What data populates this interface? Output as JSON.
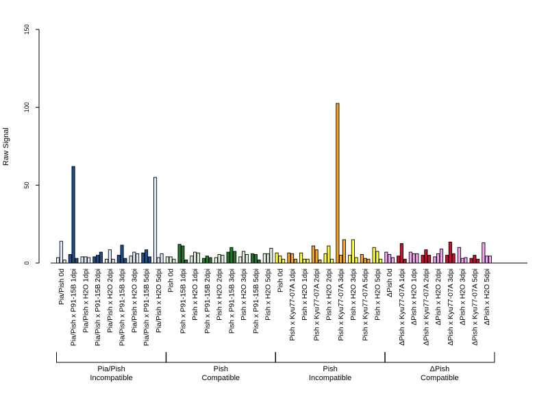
{
  "chart_data": {
    "type": "bar",
    "ylabel": "Raw Signal",
    "xlabel": "",
    "title": "",
    "ylim": [
      0,
      150
    ],
    "yticks": [
      "0",
      "50",
      "100",
      "150"
    ],
    "categories": [
      "Pia/Pish 0d",
      "Pia/Pish x P91-15B 1dpi",
      "Pia/Pish x H2O 1dpi",
      "Pia/Pish x P91-15B 2dpi",
      "Pia/Pish x H2O 2dpi",
      "Pia/Pish x P91-15B 3dpi",
      "Pia/Pish x H2O 3dpi",
      "Pia/Pish x P91-15B 5dpi",
      "Pia/Pish x H2O 5dpi",
      "Pish 0d",
      "Pish x P91-15B 1dpi",
      "Pish x H2O 1dpi",
      "Pish x P91-15B 2dpi",
      "Pish x H2O 2dpi",
      "Pish x P91-15B 3dpi",
      "Pish x H2O 3dpi",
      "Pish x P91-15B 5dpi",
      "Pish x H2O 5dpi",
      "Pish 0d",
      "Pish x Kyu77-07A 1dpi",
      "Pish x H2O 1dpi",
      "Pish x Kyu77-07A 2dpi",
      "Pish x H2O 2dpi",
      "Pish x Kyu77-07A 3dpi",
      "Pish x H2O 3dpi",
      "Pish x Kyu77-07A 5dpi",
      "Pish x H2O 5dpi",
      "ΔPish 0d",
      "ΔPish x Kyu77-07A 1dpi",
      "ΔPish x H2O 1dpi",
      "ΔPish x Kyu77-07A 2dpi",
      "ΔPish x H2O 2dpi",
      "ΔPish x Kyu77-07A 3dpi",
      "ΔPish x H2O 3dpi",
      "ΔPish x Kyu77-07A 5dpi",
      "ΔPish x H2O 5dpi"
    ],
    "values": [
      [
        3.5,
        14,
        2
      ],
      [
        5.5,
        62,
        3
      ],
      [
        4,
        4,
        3.5
      ],
      [
        4,
        5,
        7
      ],
      [
        2.5,
        8.5,
        2.5
      ],
      [
        5,
        11.5,
        3
      ],
      [
        4.5,
        7,
        6
      ],
      [
        6.5,
        8.5,
        4
      ],
      [
        55,
        3.5,
        6
      ],
      [
        4,
        4,
        2.5
      ],
      [
        12,
        11,
        2
      ],
      [
        4.5,
        7,
        6.5
      ],
      [
        3,
        4.5,
        3.5
      ],
      [
        3.5,
        5.5,
        5
      ],
      [
        7,
        10,
        7.5
      ],
      [
        4,
        7.5,
        5.5
      ],
      [
        6,
        5.5,
        2
      ],
      [
        6,
        6,
        9.5
      ],
      [
        6.5,
        4.5,
        2.5
      ],
      [
        6.5,
        6,
        2.5
      ],
      [
        6.5,
        2.5,
        2.5
      ],
      [
        11,
        8.5,
        2
      ],
      [
        6,
        11,
        2.5
      ],
      [
        102.5,
        5,
        15
      ],
      [
        5,
        15,
        3.5
      ],
      [
        5.5,
        3,
        2.5
      ],
      [
        10,
        7.5,
        2.5
      ],
      [
        7,
        5.5,
        3.5
      ],
      [
        4.5,
        12.5,
        2.5
      ],
      [
        7,
        6,
        6
      ],
      [
        5,
        8.5,
        5
      ],
      [
        4,
        6,
        9
      ],
      [
        5,
        13.5,
        6
      ],
      [
        10,
        3,
        3.5
      ],
      [
        3,
        5,
        2.5
      ],
      [
        13,
        4.5,
        4.5
      ]
    ],
    "colors": {
      "blue_light": "#dce8f5",
      "blue_dark": "#1f4e8c",
      "green_light": "#dff0da",
      "green_dark": "#217a2b",
      "yellow": "#ffff33",
      "orange": "#f5a623",
      "red": "#c8102e",
      "pink": "#f0a6f0"
    },
    "bar_colors": [
      "blue_light",
      "blue_dark",
      "blue_light",
      "blue_dark",
      "blue_light",
      "blue_dark",
      "blue_light",
      "blue_dark",
      "blue_light",
      "green_light",
      "green_dark",
      "green_light",
      "green_dark",
      "green_light",
      "green_dark",
      "green_light",
      "green_dark",
      "green_light",
      "yellow",
      "orange",
      "yellow",
      "orange",
      "yellow",
      "orange",
      "yellow",
      "orange",
      "yellow",
      "pink",
      "red",
      "pink",
      "red",
      "pink",
      "red",
      "pink",
      "red",
      "pink"
    ],
    "groups": [
      {
        "line1": "Pia/Pish",
        "line2": "Incompatible",
        "from": 0,
        "to": 8
      },
      {
        "line1": "Pish",
        "line2": "Compatible",
        "from": 9,
        "to": 17
      },
      {
        "line1": "Pish",
        "line2": "Incompatible",
        "from": 18,
        "to": 26
      },
      {
        "line1": "ΔPish",
        "line2": "Compatible",
        "from": 27,
        "to": 35
      }
    ],
    "grid": false,
    "legend": "none"
  }
}
